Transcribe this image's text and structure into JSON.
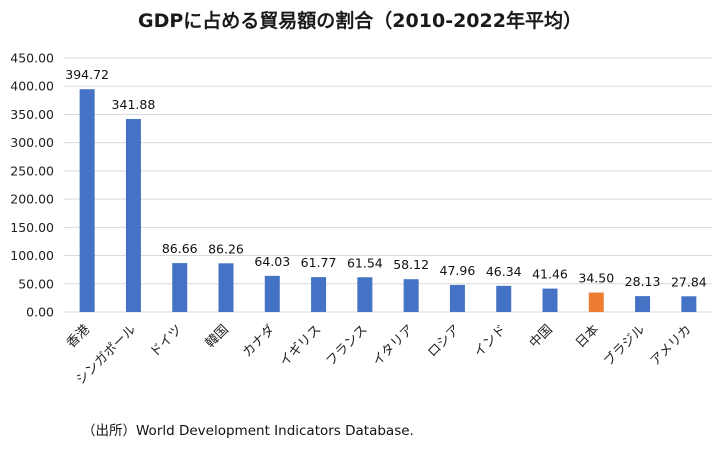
{
  "chart_data": {
    "type": "bar",
    "title": "GDPに占める貿易額の割合（2010-2022年平均）",
    "xlabel": "",
    "ylabel": "",
    "ylim": [
      0,
      450
    ],
    "yticks": [
      "0.00",
      "50.00",
      "100.00",
      "150.00",
      "200.00",
      "250.00",
      "300.00",
      "350.00",
      "400.00",
      "450.00"
    ],
    "grid": true,
    "legend": "none",
    "categories": [
      "香港",
      "シンガポール",
      "ドイツ",
      "韓国",
      "カナダ",
      "イギリス",
      "フランス",
      "イタリア",
      "ロシア",
      "インド",
      "中国",
      "日本",
      "ブラジル",
      "アメリカ"
    ],
    "values": [
      394.72,
      341.88,
      86.66,
      86.26,
      64.03,
      61.77,
      61.54,
      58.12,
      47.96,
      46.34,
      41.46,
      34.5,
      28.13,
      27.84
    ],
    "value_labels": [
      "394.72",
      "341.88",
      "86.66",
      "86.26",
      "64.03",
      "61.77",
      "61.54",
      "58.12",
      "47.96",
      "46.34",
      "41.46",
      "34.50",
      "28.13",
      "27.84"
    ],
    "colors": {
      "default": "#4472c4",
      "highlight": "#ed7d31",
      "grid": "#d9d9d9"
    },
    "highlight_category": "日本"
  },
  "source": "（出所）World Development Indicators Database."
}
